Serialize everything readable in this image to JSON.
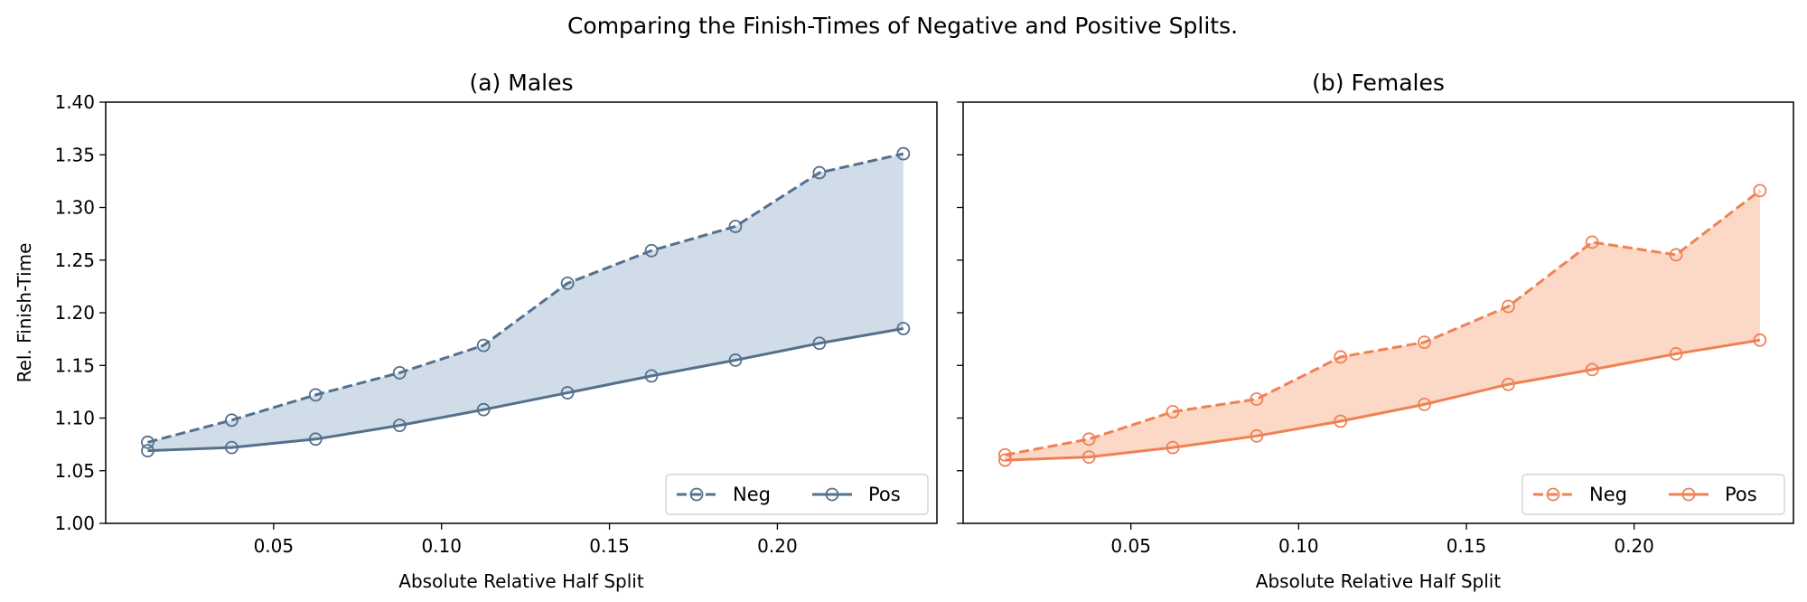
{
  "figure": {
    "title": "Comparing the Finish-Times of Negative and Positive Splits."
  },
  "chart_data": [
    {
      "type": "line",
      "title": "(a) Males",
      "xlabel": "Absolute Relative Half Split",
      "ylabel": "Rel. Finish-Time",
      "xlim": [
        0.0,
        0.2475
      ],
      "ylim": [
        1.0,
        1.4
      ],
      "xticks": [
        "0.05",
        "0.10",
        "0.15",
        "0.20"
      ],
      "yticks": [
        "1.00",
        "1.05",
        "1.10",
        "1.15",
        "1.20",
        "1.25",
        "1.30",
        "1.35",
        "1.40"
      ],
      "show_y_tick_labels": true,
      "color": "#54708c",
      "fill_color": "#d0dde9",
      "x": [
        0.0125,
        0.0375,
        0.0625,
        0.0875,
        0.1125,
        0.1375,
        0.1625,
        0.1875,
        0.2125,
        0.2375
      ],
      "series": [
        {
          "name": "Neg",
          "linestyle": "dashed",
          "values": [
            1.077,
            1.098,
            1.122,
            1.143,
            1.169,
            1.228,
            1.259,
            1.282,
            1.333,
            1.351
          ]
        },
        {
          "name": "Pos",
          "linestyle": "solid",
          "values": [
            1.069,
            1.072,
            1.08,
            1.093,
            1.108,
            1.124,
            1.14,
            1.155,
            1.171,
            1.185
          ]
        }
      ],
      "fill_between": true,
      "legend": {
        "placement": "lower-right",
        "ncol": 2
      },
      "grid": false
    },
    {
      "type": "line",
      "title": "(b) Females",
      "xlabel": "Absolute Relative Half Split",
      "ylabel": "",
      "xlim": [
        0.0,
        0.2475
      ],
      "ylim": [
        1.0,
        1.4
      ],
      "xticks": [
        "0.05",
        "0.10",
        "0.15",
        "0.20"
      ],
      "yticks": [
        "1.00",
        "1.05",
        "1.10",
        "1.15",
        "1.20",
        "1.25",
        "1.30",
        "1.35",
        "1.40"
      ],
      "show_y_tick_labels": false,
      "color": "#ef8155",
      "fill_color": "#fcd8c7",
      "x": [
        0.0125,
        0.0375,
        0.0625,
        0.0875,
        0.1125,
        0.1375,
        0.1625,
        0.1875,
        0.2125,
        0.2375
      ],
      "series": [
        {
          "name": "Neg",
          "linestyle": "dashed",
          "values": [
            1.065,
            1.08,
            1.106,
            1.118,
            1.158,
            1.172,
            1.206,
            1.267,
            1.255,
            1.316
          ]
        },
        {
          "name": "Pos",
          "linestyle": "solid",
          "values": [
            1.06,
            1.063,
            1.072,
            1.083,
            1.097,
            1.113,
            1.132,
            1.146,
            1.161,
            1.174
          ]
        }
      ],
      "fill_between": true,
      "legend": {
        "placement": "lower-right",
        "ncol": 2
      },
      "grid": false
    }
  ]
}
